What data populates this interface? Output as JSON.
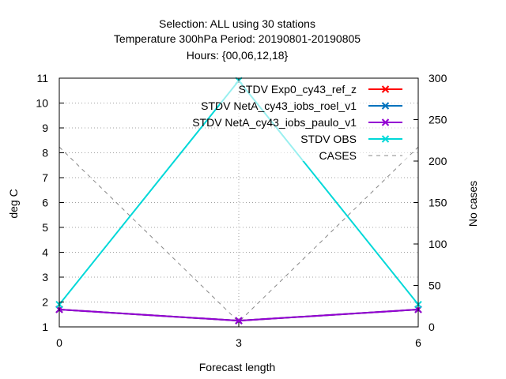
{
  "title_lines": [
    "Selection: ALL using    30 stations",
    "Temperature 300hPa   Period: 20190801-20190805",
    "Hours: {00,06,12,18}"
  ],
  "chart_data": {
    "type": "line",
    "xlabel": "Forecast length",
    "ylabel": "deg C",
    "y2label": "No cases",
    "x": [
      0,
      3,
      6
    ],
    "xlim": [
      0,
      6
    ],
    "xticks": [
      0,
      3,
      6
    ],
    "ylim": [
      1,
      11
    ],
    "yticks": [
      1,
      2,
      3,
      4,
      5,
      6,
      7,
      8,
      9,
      10,
      11
    ],
    "y2lim": [
      0,
      300
    ],
    "y2ticks": [
      0,
      50,
      100,
      150,
      200,
      250,
      300
    ],
    "grid": true,
    "legend_position": "top-right",
    "series": [
      {
        "name": "STDV Exp0_cy43_ref_z",
        "values": [
          1.7,
          1.25,
          1.7
        ],
        "color": "#ff0000",
        "axis": "y1",
        "marker": "x-cross",
        "dash": "solid"
      },
      {
        "name": "STDV NetA_cy43_iobs_roel_v1",
        "values": [
          1.7,
          1.25,
          1.7
        ],
        "color": "#0072bd",
        "axis": "y1",
        "marker": "x-cross",
        "dash": "solid"
      },
      {
        "name": "STDV NetA_cy43_iobs_paulo_v1",
        "values": [
          1.7,
          1.25,
          1.7
        ],
        "color": "#9400d3",
        "axis": "y1",
        "marker": "x-cross",
        "dash": "solid"
      },
      {
        "name": "STDV OBS",
        "values": [
          1.9,
          10.9,
          1.9
        ],
        "color": "#00d8d8",
        "axis": "y1",
        "marker": "x-cross",
        "dash": "solid"
      },
      {
        "name": "CASES",
        "values": [
          217,
          6,
          217
        ],
        "color": "#888888",
        "axis": "y2",
        "marker": "none",
        "dash": "dashed"
      }
    ]
  }
}
